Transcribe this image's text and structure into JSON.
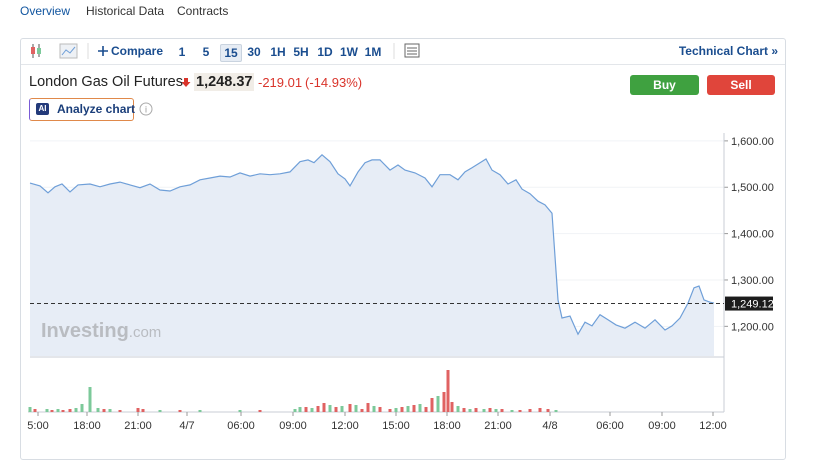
{
  "tabs": [
    "Overview",
    "Historical Data",
    "Contracts"
  ],
  "toolbar": {
    "compare": "Compare",
    "intervals": [
      "1",
      "5",
      "15",
      "30",
      "1H",
      "5H",
      "1D",
      "1W",
      "1M"
    ],
    "selected_interval": "15",
    "technical_chart": "Technical Chart »"
  },
  "instrument": {
    "name": "London Gas Oil Futures",
    "price": "1,248.37",
    "change": "-219.01",
    "change_percent": "(-14.93%)"
  },
  "buttons": {
    "buy": "Buy",
    "sell": "Sell",
    "ai_badge": "AI",
    "analyze": "Analyze chart"
  },
  "watermark": {
    "brand": "Investing",
    "suffix": ".com"
  },
  "chart_data": {
    "type": "area",
    "color": "#6f9fd8",
    "fill": "#e7edf6",
    "x": [
      0,
      10,
      18,
      25,
      32,
      40,
      48,
      60,
      70,
      80,
      90,
      100,
      110,
      120,
      130,
      140,
      150,
      160,
      170,
      180,
      190,
      200,
      210,
      220,
      230,
      240,
      250,
      260,
      270,
      278,
      284,
      292,
      300,
      308,
      315,
      320,
      328,
      335,
      342,
      350,
      360,
      368,
      375,
      385,
      395,
      402,
      410,
      420,
      428,
      435,
      442,
      450,
      456,
      462,
      470,
      478,
      486,
      492,
      500,
      508,
      515,
      522,
      528,
      532,
      540,
      548,
      555,
      562,
      570,
      578,
      586,
      595,
      605,
      615,
      625,
      635,
      642,
      650,
      658,
      664,
      669,
      674,
      680,
      684
    ],
    "series": [
      {
        "color": "#6f9fd8",
        "values": [
          1509,
          1503,
          1488,
          1501,
          1507,
          1490,
          1505,
          1507,
          1501,
          1507,
          1511,
          1505,
          1499,
          1507,
          1494,
          1492,
          1501,
          1505,
          1516,
          1520,
          1524,
          1522,
          1531,
          1524,
          1529,
          1527,
          1529,
          1533,
          1555,
          1559,
          1553,
          1570,
          1555,
          1529,
          1518,
          1503,
          1533,
          1553,
          1559,
          1559,
          1537,
          1548,
          1537,
          1531,
          1520,
          1501,
          1527,
          1527,
          1516,
          1533,
          1542,
          1553,
          1561,
          1537,
          1527,
          1507,
          1516,
          1496,
          1486,
          1470,
          1462,
          1444,
          1257,
          1218,
          1222,
          1183,
          1209,
          1201,
          1225,
          1214,
          1203,
          1196,
          1209,
          1196,
          1214,
          1192,
          1201,
          1218,
          1250,
          1283,
          1287,
          1257,
          1252,
          1250
        ]
      }
    ],
    "xlim": [
      0,
      696
    ],
    "ylim": [
      1136,
      1617
    ],
    "yticks": [
      {
        "value": 1200,
        "label": "1,200.00"
      },
      {
        "value": 1300,
        "label": "1,300.00"
      },
      {
        "value": 1400,
        "label": "1,400.00"
      },
      {
        "value": 1500,
        "label": "1,500.00"
      },
      {
        "value": 1600,
        "label": "1,600.00"
      }
    ],
    "xticks": [
      {
        "value": 8,
        "label": "5:00"
      },
      {
        "value": 57,
        "label": "18:00"
      },
      {
        "value": 108,
        "label": "21:00"
      },
      {
        "value": 157,
        "label": "4/7"
      },
      {
        "value": 211,
        "label": "06:00"
      },
      {
        "value": 263,
        "label": "09:00"
      },
      {
        "value": 315,
        "label": "12:00"
      },
      {
        "value": 366,
        "label": "15:00"
      },
      {
        "value": 417,
        "label": "18:00"
      },
      {
        "value": 468,
        "label": "21:00"
      },
      {
        "value": 520,
        "label": "4/8"
      },
      {
        "value": 580,
        "label": "06:00"
      },
      {
        "value": 632,
        "label": "09:00"
      },
      {
        "value": 683,
        "label": "12:00"
      }
    ],
    "last_price": {
      "value": 1249.12,
      "label": "1,249.12"
    },
    "volume": {
      "ylim": [
        0,
        50
      ],
      "up_color": "#7cc99a",
      "down_color": "#e06262",
      "x": [
        0,
        5,
        17,
        22,
        28,
        33,
        40,
        46,
        52,
        60,
        68,
        74,
        80,
        90,
        108,
        113,
        130,
        150,
        170,
        210,
        230,
        265,
        270,
        276,
        282,
        288,
        294,
        300,
        306,
        312,
        320,
        326,
        332,
        338,
        344,
        350,
        360,
        366,
        372,
        378,
        384,
        390,
        396,
        402,
        408,
        414,
        418,
        422,
        428,
        434,
        440,
        446,
        454,
        460,
        466,
        472,
        482,
        490,
        500,
        510,
        518,
        526
      ],
      "values": [
        5,
        3,
        3,
        2,
        3,
        2,
        3,
        4,
        8,
        25,
        4,
        3,
        3,
        2,
        4,
        3,
        2,
        2,
        2,
        2,
        2,
        3,
        5,
        5,
        4,
        6,
        9,
        7,
        5,
        6,
        8,
        7,
        3,
        9,
        6,
        5,
        3,
        4,
        5,
        6,
        7,
        8,
        5,
        14,
        16,
        20,
        42,
        10,
        6,
        4,
        3,
        4,
        3,
        4,
        3,
        3,
        2,
        2,
        3,
        4,
        3,
        2
      ],
      "direction": [
        "up",
        "down",
        "up",
        "down",
        "up",
        "down",
        "down",
        "up",
        "up",
        "up",
        "up",
        "down",
        "up",
        "down",
        "down",
        "down",
        "up",
        "down",
        "up",
        "up",
        "down",
        "up",
        "up",
        "down",
        "up",
        "down",
        "down",
        "up",
        "down",
        "up",
        "down",
        "up",
        "down",
        "down",
        "up",
        "down",
        "down",
        "up",
        "down",
        "up",
        "down",
        "up",
        "down",
        "down",
        "up",
        "down",
        "down",
        "down",
        "up",
        "down",
        "up",
        "down",
        "up",
        "down",
        "up",
        "down",
        "up",
        "down",
        "down",
        "down",
        "down",
        "up"
      ]
    }
  }
}
